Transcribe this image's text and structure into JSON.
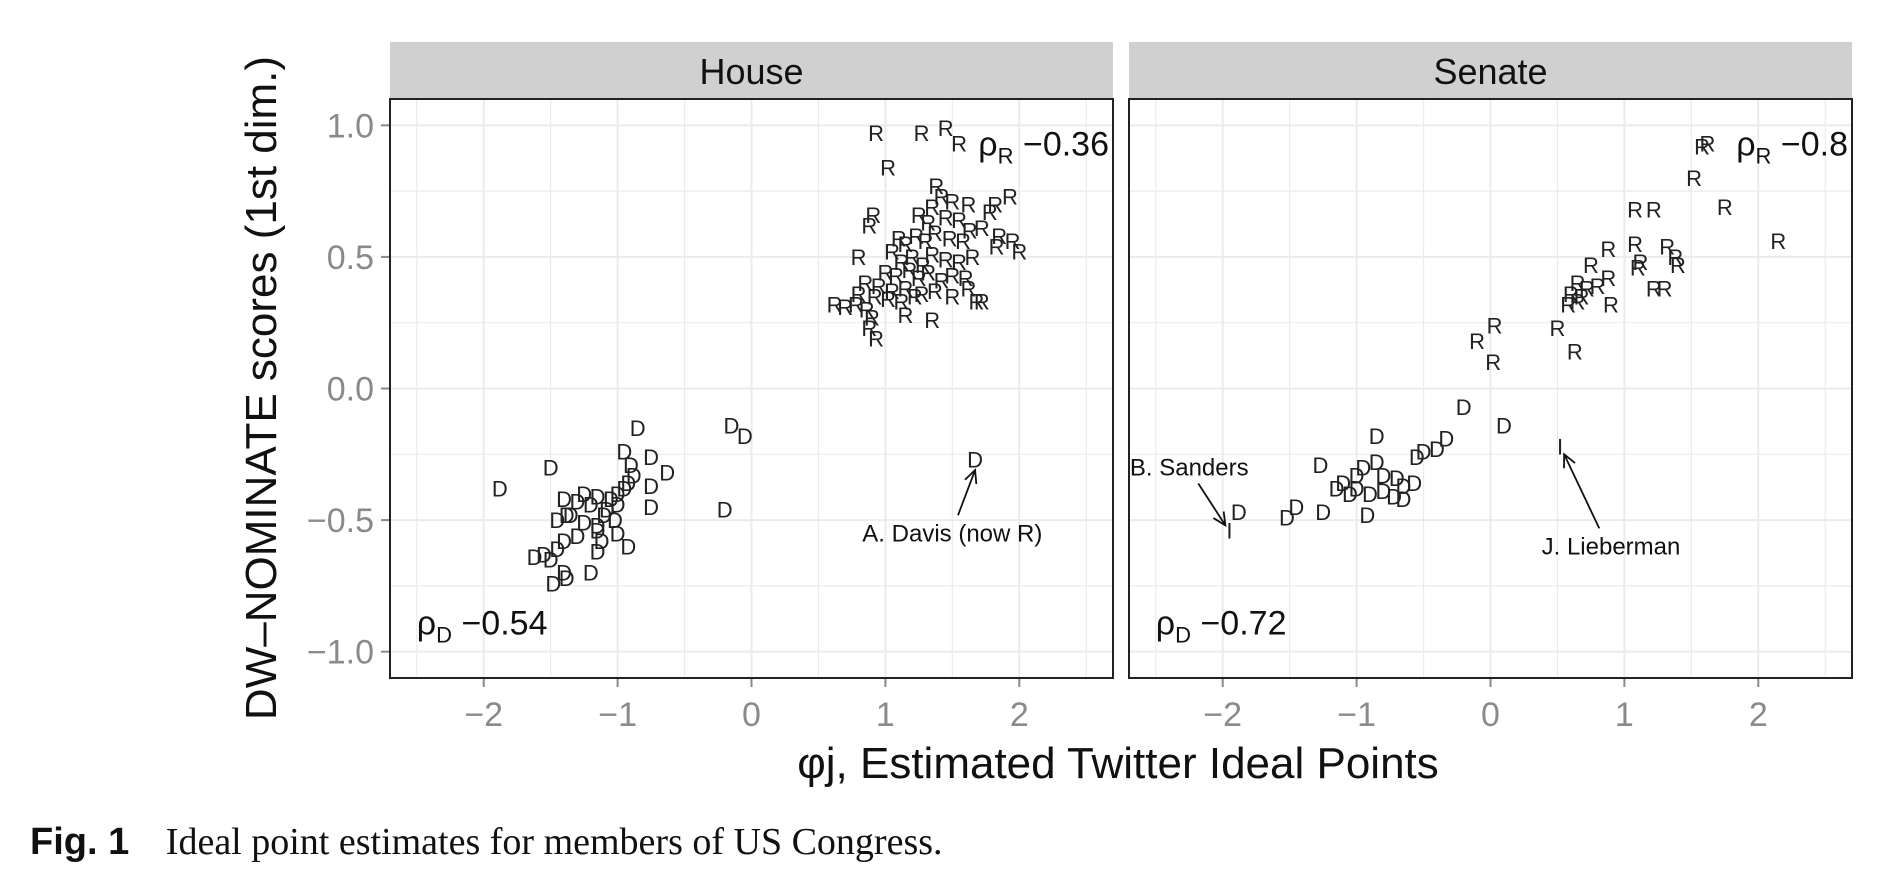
{
  "figure": {
    "caption_label": "Fig. 1",
    "caption_text": "Ideal point estimates for members of US Congress."
  },
  "chart_data": {
    "type": "scatter",
    "ylabel": "DW–NOMINATE scores (1st dim.)",
    "xlabel": "φj, Estimated Twitter Ideal Points",
    "xlim": [
      -2.7,
      2.7
    ],
    "ylim": [
      -1.1,
      1.1
    ],
    "x_ticks": [
      -2,
      -1,
      0,
      1,
      2
    ],
    "x_tick_labels": [
      "−2",
      "−1",
      "0",
      "1",
      "2"
    ],
    "y_ticks": [
      1.0,
      0.5,
      0.0,
      -0.5,
      -1.0
    ],
    "y_tick_labels": [
      "1.0",
      "0.5",
      "0.0",
      "−0.5",
      "−1.0"
    ],
    "grid": true,
    "colors": {
      "strip": "#d0d0d0",
      "grid": "#ebebeb",
      "tick": "#8a8a8a",
      "marker": "#222222",
      "text": "#111111"
    },
    "panels": [
      {
        "title": "House",
        "annotations": [
          {
            "label": "ρR",
            "value": "−0.36"
          },
          {
            "label": "ρD",
            "value": "−0.54"
          }
        ],
        "callouts": [
          {
            "text": "A. Davis (now R)",
            "tx": 1.5,
            "ty": -0.55,
            "ax": 1.67,
            "ay": -0.31,
            "anchor": "middle"
          }
        ],
        "series": [
          {
            "party": "R",
            "marker": "R",
            "points": [
              [
                0.93,
                0.97
              ],
              [
                1.27,
                0.97
              ],
              [
                1.45,
                0.99
              ],
              [
                1.55,
                0.93
              ],
              [
                1.02,
                0.84
              ],
              [
                0.91,
                0.66
              ],
              [
                0.88,
                0.62
              ],
              [
                1.38,
                0.77
              ],
              [
                1.42,
                0.73
              ],
              [
                1.5,
                0.71
              ],
              [
                1.35,
                0.69
              ],
              [
                1.62,
                0.7
              ],
              [
                1.78,
                0.67
              ],
              [
                1.82,
                0.7
              ],
              [
                1.93,
                0.73
              ],
              [
                1.25,
                0.66
              ],
              [
                1.32,
                0.63
              ],
              [
                1.45,
                0.65
              ],
              [
                1.55,
                0.64
              ],
              [
                1.63,
                0.6
              ],
              [
                1.72,
                0.61
              ],
              [
                1.1,
                0.57
              ],
              [
                1.15,
                0.55
              ],
              [
                1.23,
                0.58
              ],
              [
                1.3,
                0.56
              ],
              [
                1.37,
                0.59
              ],
              [
                1.48,
                0.57
              ],
              [
                1.58,
                0.56
              ],
              [
                1.85,
                0.58
              ],
              [
                1.95,
                0.56
              ],
              [
                2.0,
                0.52
              ],
              [
                1.83,
                0.54
              ],
              [
                0.8,
                0.5
              ],
              [
                1.05,
                0.52
              ],
              [
                1.12,
                0.48
              ],
              [
                1.2,
                0.5
              ],
              [
                1.28,
                0.47
              ],
              [
                1.35,
                0.51
              ],
              [
                1.45,
                0.49
              ],
              [
                1.55,
                0.48
              ],
              [
                1.65,
                0.5
              ],
              [
                1.0,
                0.44
              ],
              [
                1.08,
                0.43
              ],
              [
                1.18,
                0.45
              ],
              [
                1.25,
                0.42
              ],
              [
                1.32,
                0.44
              ],
              [
                1.42,
                0.41
              ],
              [
                1.5,
                0.43
              ],
              [
                1.6,
                0.42
              ],
              [
                0.85,
                0.4
              ],
              [
                0.95,
                0.39
              ],
              [
                1.05,
                0.37
              ],
              [
                1.15,
                0.38
              ],
              [
                1.27,
                0.36
              ],
              [
                1.37,
                0.37
              ],
              [
                1.5,
                0.35
              ],
              [
                0.8,
                0.36
              ],
              [
                0.92,
                0.35
              ],
              [
                1.02,
                0.34
              ],
              [
                1.12,
                0.33
              ],
              [
                1.22,
                0.35
              ],
              [
                1.62,
                0.38
              ],
              [
                1.68,
                0.33
              ],
              [
                1.72,
                0.33
              ],
              [
                0.62,
                0.32
              ],
              [
                0.7,
                0.31
              ],
              [
                0.78,
                0.32
              ],
              [
                0.86,
                0.3
              ],
              [
                0.9,
                0.27
              ],
              [
                0.88,
                0.23
              ],
              [
                0.93,
                0.19
              ],
              [
                1.15,
                0.28
              ],
              [
                1.35,
                0.26
              ]
            ]
          },
          {
            "party": "D",
            "marker": "D",
            "points": [
              [
                -1.88,
                -0.38
              ],
              [
                -1.5,
                -0.3
              ],
              [
                -0.85,
                -0.15
              ],
              [
                -0.95,
                -0.24
              ],
              [
                -0.75,
                -0.26
              ],
              [
                -0.63,
                -0.32
              ],
              [
                -0.9,
                -0.29
              ],
              [
                -0.88,
                -0.33
              ],
              [
                -0.92,
                -0.36
              ],
              [
                -0.95,
                -0.38
              ],
              [
                -1.0,
                -0.4
              ],
              [
                -0.75,
                -0.37
              ],
              [
                -0.75,
                -0.45
              ],
              [
                -1.25,
                -0.4
              ],
              [
                -1.15,
                -0.41
              ],
              [
                -1.05,
                -0.42
              ],
              [
                -1.0,
                -0.44
              ],
              [
                -1.08,
                -0.46
              ],
              [
                -1.2,
                -0.44
              ],
              [
                -1.3,
                -0.43
              ],
              [
                -1.4,
                -0.42
              ],
              [
                -1.1,
                -0.48
              ],
              [
                -1.02,
                -0.5
              ],
              [
                -1.15,
                -0.52
              ],
              [
                -1.25,
                -0.51
              ],
              [
                -1.35,
                -0.48
              ],
              [
                -1.45,
                -0.5
              ],
              [
                -1.38,
                -0.48
              ],
              [
                -1.15,
                -0.54
              ],
              [
                -1.0,
                -0.55
              ],
              [
                -0.92,
                -0.6
              ],
              [
                -1.3,
                -0.56
              ],
              [
                -1.4,
                -0.58
              ],
              [
                -1.12,
                -0.58
              ],
              [
                -1.15,
                -0.62
              ],
              [
                -1.45,
                -0.61
              ],
              [
                -1.55,
                -0.63
              ],
              [
                -1.62,
                -0.64
              ],
              [
                -1.5,
                -0.65
              ],
              [
                -1.4,
                -0.7
              ],
              [
                -1.38,
                -0.72
              ],
              [
                -1.2,
                -0.7
              ],
              [
                -1.48,
                -0.74
              ],
              [
                -0.15,
                -0.14
              ],
              [
                -0.05,
                -0.18
              ],
              [
                -0.2,
                -0.46
              ],
              [
                1.67,
                -0.27
              ]
            ]
          }
        ]
      },
      {
        "title": "Senate",
        "annotations": [
          {
            "label": "ρR",
            "value": "−0.8"
          },
          {
            "label": "ρD",
            "value": "−0.72"
          }
        ],
        "callouts": [
          {
            "text": "B. Sanders",
            "tx": -2.25,
            "ty": -0.3,
            "ax": -1.98,
            "ay": -0.52,
            "anchor": "middle"
          },
          {
            "text": "J. Lieberman",
            "tx": 0.9,
            "ty": -0.6,
            "ax": 0.55,
            "ay": -0.25,
            "anchor": "middle"
          }
        ],
        "series": [
          {
            "party": "R",
            "marker": "R",
            "points": [
              [
                1.62,
                0.93
              ],
              [
                1.58,
                0.92
              ],
              [
                1.52,
                0.8
              ],
              [
                1.75,
                0.69
              ],
              [
                2.15,
                0.56
              ],
              [
                1.08,
                0.68
              ],
              [
                1.22,
                0.68
              ],
              [
                1.08,
                0.55
              ],
              [
                1.32,
                0.54
              ],
              [
                1.38,
                0.5
              ],
              [
                1.1,
                0.46
              ],
              [
                1.12,
                0.48
              ],
              [
                1.4,
                0.47
              ],
              [
                0.88,
                0.53
              ],
              [
                0.75,
                0.47
              ],
              [
                0.88,
                0.42
              ],
              [
                0.65,
                0.4
              ],
              [
                0.72,
                0.38
              ],
              [
                0.8,
                0.39
              ],
              [
                0.6,
                0.36
              ],
              [
                0.68,
                0.35
              ],
              [
                1.22,
                0.38
              ],
              [
                1.3,
                0.38
              ],
              [
                0.58,
                0.32
              ],
              [
                0.65,
                0.33
              ],
              [
                0.9,
                0.32
              ],
              [
                0.03,
                0.24
              ],
              [
                0.5,
                0.23
              ],
              [
                0.63,
                0.14
              ],
              [
                -0.1,
                0.18
              ],
              [
                0.02,
                0.1
              ]
            ]
          },
          {
            "party": "D",
            "marker": "D",
            "points": [
              [
                -0.2,
                -0.07
              ],
              [
                0.1,
                -0.14
              ],
              [
                -0.85,
                -0.18
              ],
              [
                -0.33,
                -0.19
              ],
              [
                -0.4,
                -0.23
              ],
              [
                -0.5,
                -0.24
              ],
              [
                -0.55,
                -0.26
              ],
              [
                -1.27,
                -0.29
              ],
              [
                -0.85,
                -0.28
              ],
              [
                -0.95,
                -0.3
              ],
              [
                -0.8,
                -0.33
              ],
              [
                -0.7,
                -0.34
              ],
              [
                -0.65,
                -0.37
              ],
              [
                -0.57,
                -0.36
              ],
              [
                -1.0,
                -0.33
              ],
              [
                -1.1,
                -0.36
              ],
              [
                -1.0,
                -0.38
              ],
              [
                -0.9,
                -0.4
              ],
              [
                -0.8,
                -0.39
              ],
              [
                -0.72,
                -0.41
              ],
              [
                -1.05,
                -0.4
              ],
              [
                -1.15,
                -0.38
              ],
              [
                -0.65,
                -0.42
              ],
              [
                -1.88,
                -0.47
              ],
              [
                -1.45,
                -0.45
              ],
              [
                -1.25,
                -0.47
              ],
              [
                -1.52,
                -0.49
              ],
              [
                -0.92,
                -0.48
              ]
            ]
          },
          {
            "party": "I",
            "marker": "I",
            "points": [
              [
                -1.95,
                -0.54
              ],
              [
                0.52,
                -0.22
              ]
            ]
          }
        ]
      }
    ]
  }
}
